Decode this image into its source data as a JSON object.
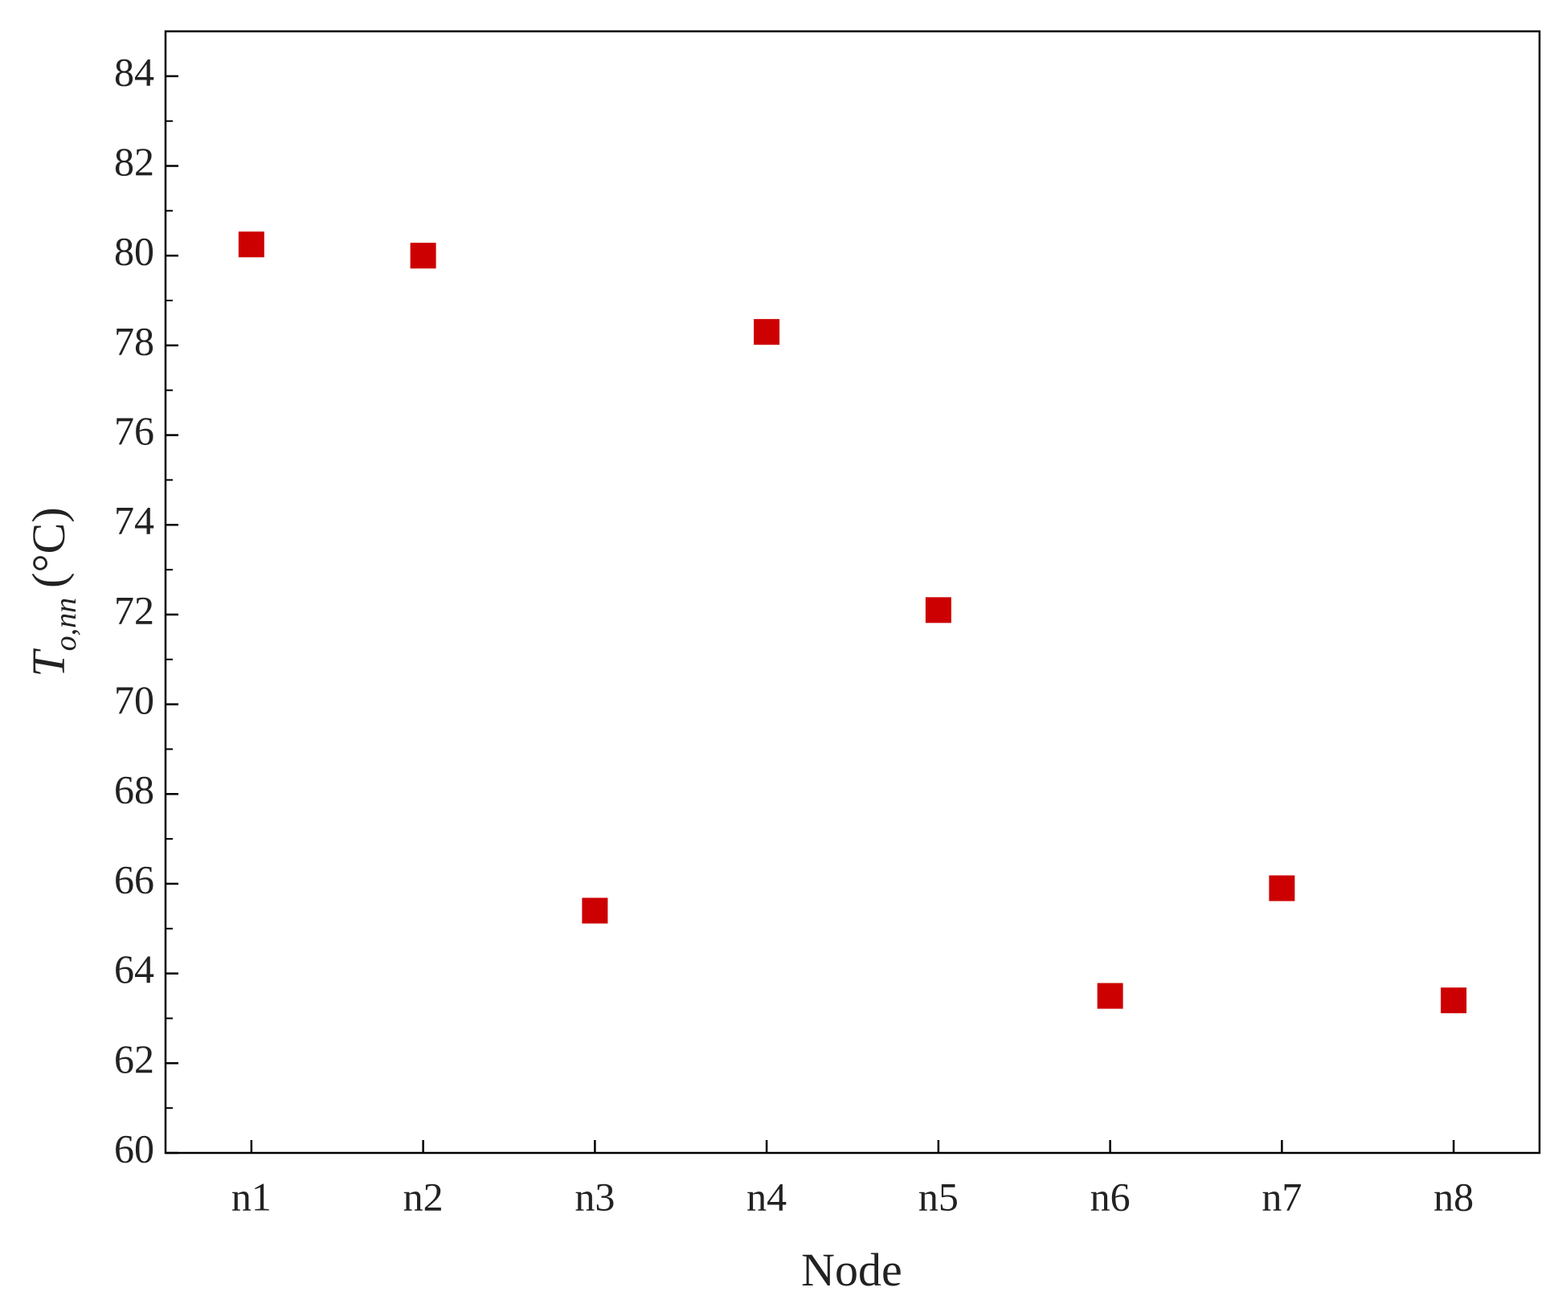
{
  "chart_data": {
    "type": "scatter",
    "x_label": "Node",
    "y_label": {
      "symbol": "T",
      "subscript": "o,nn",
      "unit": "(°C)"
    },
    "categories": [
      "n1",
      "n2",
      "n3",
      "n4",
      "n5",
      "n6",
      "n7",
      "n8"
    ],
    "series": [
      {
        "color": "#cc0000",
        "marker": "square",
        "values": [
          80.25,
          80.0,
          65.4,
          78.3,
          72.1,
          63.5,
          65.9,
          63.4
        ]
      }
    ],
    "ylim": [
      60,
      85
    ],
    "yticks": [
      60,
      62,
      64,
      66,
      68,
      70,
      72,
      74,
      76,
      78,
      80,
      82,
      84
    ],
    "grid": false
  }
}
